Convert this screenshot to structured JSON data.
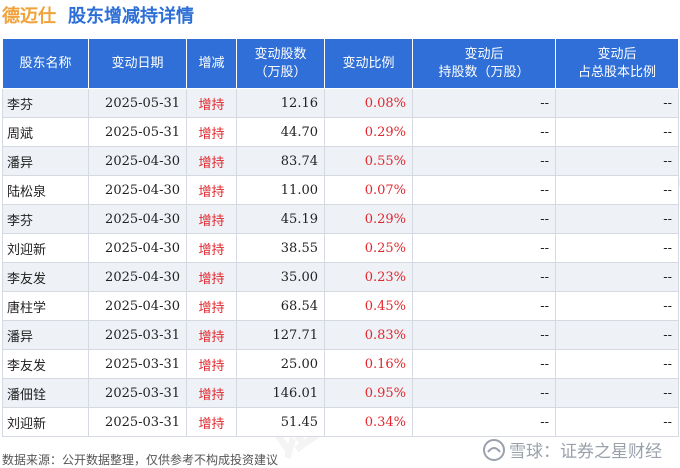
{
  "header": {
    "company": "德迈仕",
    "title": "股东增减持详情"
  },
  "table": {
    "columns": [
      "股东名称",
      "变动日期",
      "增减",
      "变动股数\n（万股）",
      "变动比例",
      "变动后\n持股数（万股）",
      "变动后\n占总股本比例"
    ],
    "rows": [
      {
        "name": "李芬",
        "date": "2025-05-31",
        "dir": "增持",
        "shares": "12.16",
        "ratio": "0.08%",
        "hold": "--",
        "pct": "--"
      },
      {
        "name": "周斌",
        "date": "2025-05-31",
        "dir": "增持",
        "shares": "44.70",
        "ratio": "0.29%",
        "hold": "--",
        "pct": "--"
      },
      {
        "name": "潘异",
        "date": "2025-04-30",
        "dir": "增持",
        "shares": "83.74",
        "ratio": "0.55%",
        "hold": "--",
        "pct": "--"
      },
      {
        "name": "陆松泉",
        "date": "2025-04-30",
        "dir": "增持",
        "shares": "11.00",
        "ratio": "0.07%",
        "hold": "--",
        "pct": "--"
      },
      {
        "name": "李芬",
        "date": "2025-04-30",
        "dir": "增持",
        "shares": "45.19",
        "ratio": "0.29%",
        "hold": "--",
        "pct": "--"
      },
      {
        "name": "刘迎新",
        "date": "2025-04-30",
        "dir": "增持",
        "shares": "38.55",
        "ratio": "0.25%",
        "hold": "--",
        "pct": "--"
      },
      {
        "name": "李友发",
        "date": "2025-04-30",
        "dir": "增持",
        "shares": "35.00",
        "ratio": "0.23%",
        "hold": "--",
        "pct": "--"
      },
      {
        "name": "唐柱学",
        "date": "2025-04-30",
        "dir": "增持",
        "shares": "68.54",
        "ratio": "0.45%",
        "hold": "--",
        "pct": "--"
      },
      {
        "name": "潘异",
        "date": "2025-03-31",
        "dir": "增持",
        "shares": "127.71",
        "ratio": "0.83%",
        "hold": "--",
        "pct": "--"
      },
      {
        "name": "李友发",
        "date": "2025-03-31",
        "dir": "增持",
        "shares": "25.00",
        "ratio": "0.16%",
        "hold": "--",
        "pct": "--"
      },
      {
        "name": "潘佃铨",
        "date": "2025-03-31",
        "dir": "增持",
        "shares": "146.01",
        "ratio": "0.95%",
        "hold": "--",
        "pct": "--"
      },
      {
        "name": "刘迎新",
        "date": "2025-03-31",
        "dir": "增持",
        "shares": "51.45",
        "ratio": "0.34%",
        "hold": "--",
        "pct": "--"
      }
    ]
  },
  "footer": {
    "source": "数据来源：公开数据整理，仅供参考不构成投资建议",
    "brand": "雪球：证券之星财经"
  },
  "watermark": "证券之星",
  "colors": {
    "header_bg": "#2f6fd7",
    "company": "#f0a23c",
    "title": "#2d6fd6",
    "increase": "#e0282e",
    "row_alt": "#eef1f6"
  }
}
